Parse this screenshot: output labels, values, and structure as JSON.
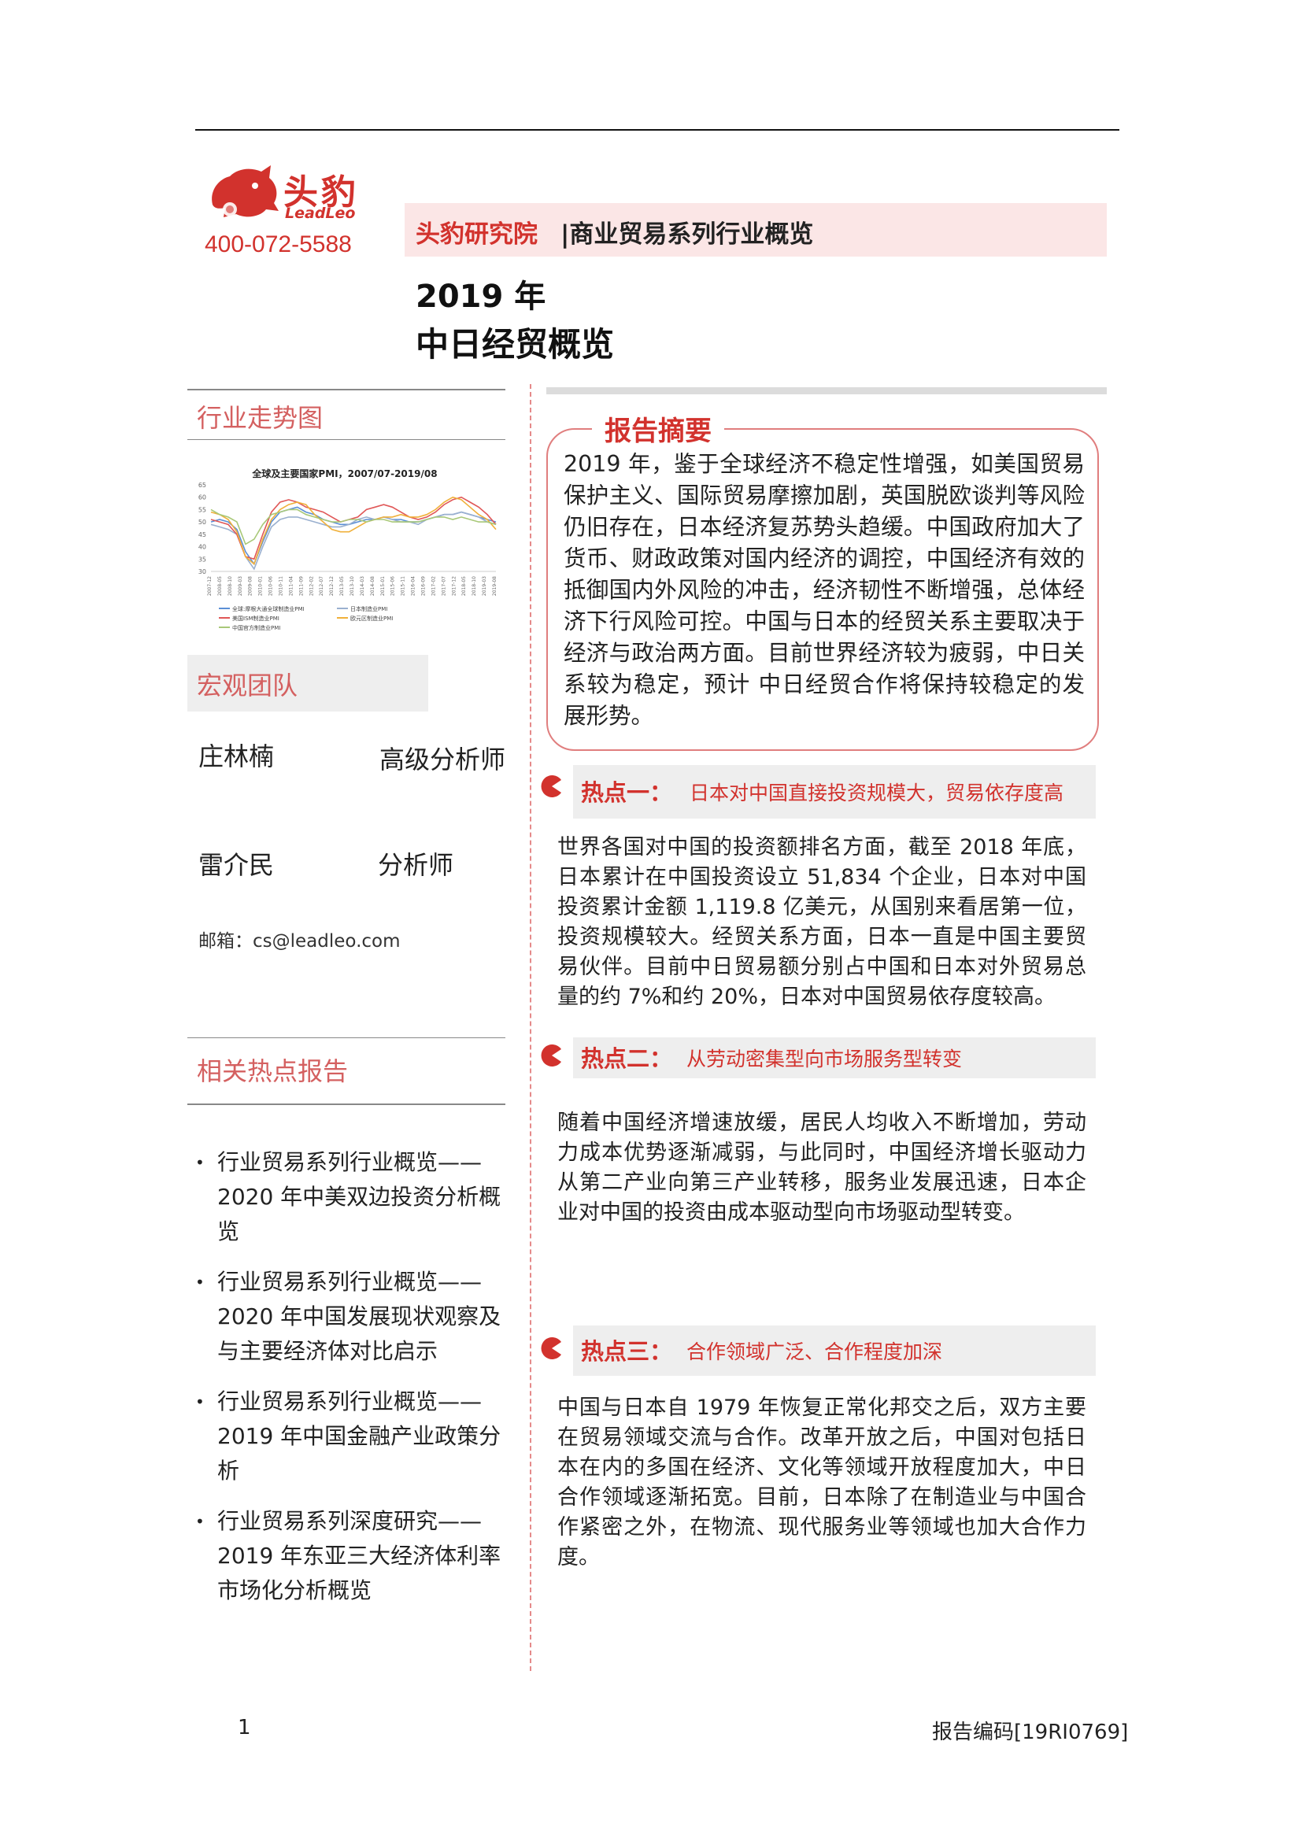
{
  "header": {
    "brand_cn": "头豹",
    "brand_en": "LeadLeo",
    "phone": "400-072-5588",
    "series_brand": "头豹研究院",
    "series_name": "|商业贸易系列行业概览",
    "title_year": "2019 年",
    "title_main": "中日经贸概览"
  },
  "sidebar": {
    "trend_heading": "行业走势图",
    "macro_heading": "宏观团队",
    "team": [
      {
        "name": "庄林楠",
        "role": "高级分析师"
      },
      {
        "name": "雷介民",
        "role": "分析师"
      }
    ],
    "email": "邮箱：cs@leadleo.com",
    "related_heading": "相关热点报告",
    "related_reports": [
      "行业贸易系列行业概览——2020 年中美双边投资分析概览",
      "行业贸易系列行业概览——2020 年中国发展现状观察及与主要经济体对比启示",
      "行业贸易系列行业概览——2019 年中国金融产业政策分析",
      "行业贸易系列深度研究——2019 年东亚三大经济体利率市场化分析概览"
    ],
    "bullet": "•"
  },
  "chart_data": {
    "type": "line",
    "title": "全球及主要国家PMI，2007/07-2019/08",
    "ylim": [
      30,
      65
    ],
    "yticks": [
      "65",
      "60",
      "55",
      "50",
      "45",
      "40",
      "35",
      "30"
    ],
    "xticks": [
      "2007-12",
      "2008-05",
      "2008-10",
      "2009-03",
      "2009-08",
      "2010-01",
      "2010-06",
      "2010-11",
      "2011-04",
      "2011-09",
      "2012-02",
      "2012-07",
      "2012-12",
      "2013-05",
      "2013-10",
      "2014-03",
      "2014-08",
      "2015-01",
      "2015-06",
      "2015-11",
      "2016-04",
      "2016-09",
      "2017-02",
      "2017-07",
      "2017-12",
      "2018-05",
      "2018-10",
      "2019-03",
      "2019-08"
    ],
    "series": [
      {
        "name": "全球:摩根大通全球制造业PMI",
        "color": "#5b8fd6",
        "values": [
          50,
          51,
          50,
          47,
          38,
          33,
          42,
          50,
          54,
          55,
          56,
          54,
          53,
          51,
          50,
          49,
          49,
          50,
          51,
          51,
          52,
          51,
          51,
          50,
          50,
          51,
          52,
          53,
          53,
          54,
          53,
          52,
          51,
          50
        ]
      },
      {
        "name": "日本制造业PMI",
        "color": "#9ab0cf",
        "values": [
          49,
          48,
          47,
          45,
          36,
          31,
          40,
          48,
          51,
          52,
          52,
          51,
          50,
          49,
          48,
          48,
          49,
          51,
          52,
          51,
          52,
          51,
          50,
          50,
          49,
          51,
          52,
          53,
          53,
          54,
          53,
          52,
          50,
          49
        ]
      },
      {
        "name": "美国ISM制造业PMI",
        "color": "#e05757",
        "values": [
          51,
          50,
          49,
          45,
          36,
          35,
          45,
          54,
          58,
          59,
          58,
          56,
          55,
          54,
          52,
          50,
          51,
          52,
          55,
          56,
          57,
          56,
          54,
          52,
          51,
          52,
          54,
          57,
          59,
          60,
          58,
          56,
          53,
          49
        ]
      },
      {
        "name": "欧元区制造业PMI",
        "color": "#f0b03a",
        "values": [
          54,
          53,
          51,
          46,
          36,
          33,
          43,
          51,
          55,
          57,
          58,
          57,
          53,
          50,
          47,
          46,
          46,
          48,
          50,
          51,
          52,
          52,
          53,
          52,
          52,
          53,
          55,
          58,
          60,
          59,
          56,
          53,
          51,
          47
        ]
      },
      {
        "name": "中国官方制造业PMI",
        "color": "#a8c878",
        "values": [
          55,
          53,
          52,
          50,
          41,
          43,
          49,
          53,
          54,
          55,
          55,
          53,
          52,
          51,
          50,
          50,
          51,
          51,
          50,
          51,
          51,
          50,
          50,
          50,
          50,
          51,
          52,
          52,
          51,
          52,
          51,
          50,
          50,
          49
        ]
      }
    ]
  },
  "abstract": {
    "label": "报告摘要",
    "text": "2019 年，鉴于全球经济不稳定性增强，如美国贸易保护主义、国际贸易摩擦加剧，英国脱欧谈判等风险仍旧存在，日本经济复苏势头趋缓。中国政府加大了货币、财政政策对国内经济的调控，中国经济有效的抵御国内外风险的冲击，经济韧性不断增强，总体经济下行风险可控。中国与日本的经贸关系主要取决于经济与政治两方面。目前世界经济较为疲弱，中日关系较为稳定，预计 中日经贸合作将保持较稳定的发展形势。"
  },
  "hotspots": [
    {
      "title": "热点一：",
      "subtitle": "日本对中国直接投资规模大，贸易依存度高",
      "text": "世界各国对中国的投资额排名方面，截至 2018 年底，日本累计在中国投资设立 51,834 个企业，日本对中国投资累计金额 1,119.8 亿美元，从国别来看居第一位，投资规模较大。经贸关系方面，日本一直是中国主要贸易伙伴。目前中日贸易额分别占中国和日本对外贸易总量的约 7%和约 20%，日本对中国贸易依存度较高。"
    },
    {
      "title": "热点二：",
      "subtitle": "从劳动密集型向市场服务型转变",
      "text": "随着中国经济增速放缓，居民人均收入不断增加，劳动力成本优势逐渐减弱，与此同时，中国经济增长驱动力从第二产业向第三产业转移，服务业发展迅速，日本企业对中国的投资由成本驱动型向市场驱动型转变。"
    },
    {
      "title": "热点三：",
      "subtitle": "合作领域广泛、合作程度加深",
      "text": "中国与日本自 1979 年恢复正常化邦交之后，双方主要在贸易领域交流与合作。改革开放之后，中国对包括日本在内的多国在经济、文化等领域开放程度加大，中日合作领域逐渐拓宽。目前，日本除了在制造业与中国合作紧密之外，在物流、现代服务业等领域也加大合作力度。"
    }
  ],
  "footer": {
    "page_number": "1",
    "report_code": "报告编码[19RI0769]"
  }
}
